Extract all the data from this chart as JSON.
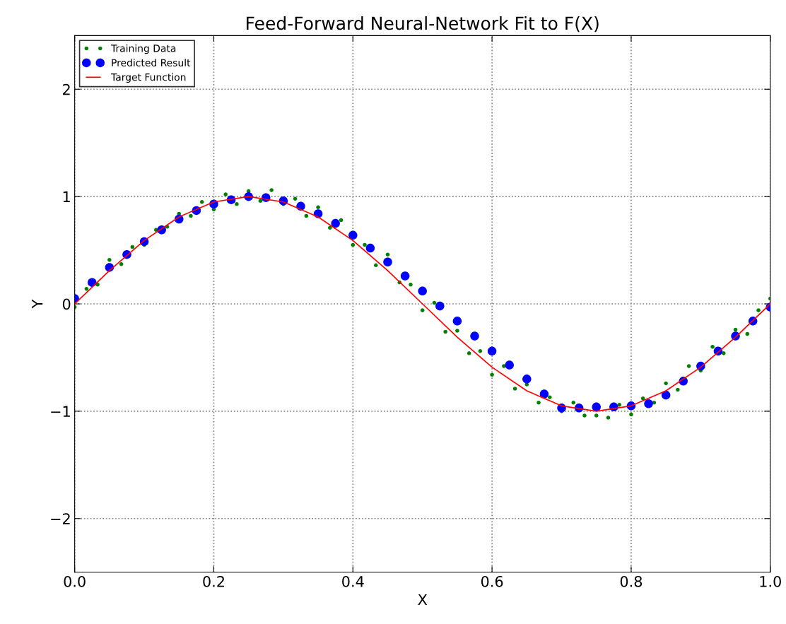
{
  "chart_data": {
    "type": "scatter",
    "title": "Feed-Forward Neural-Network Fit to F(X)",
    "xlabel": "X",
    "ylabel": "Y",
    "xlim": [
      0,
      1
    ],
    "xticks": [
      {
        "value": 0,
        "label": "0.0"
      },
      0.2,
      0.4,
      0.6,
      0.8,
      {
        "value": 1,
        "label": "1.0"
      }
    ],
    "ylim": [
      -2.5,
      2.5
    ],
    "yticks": [
      {
        "value": -2,
        "label": "−2"
      },
      {
        "value": -1,
        "label": "−1"
      },
      0,
      1,
      2
    ],
    "grid": true,
    "legend": "top left",
    "series": [
      {
        "name": "Training Data",
        "marker": "circle",
        "color": "#007f00",
        "x": [
          0,
          0.017,
          0.033,
          0.05,
          0.067,
          0.083,
          0.1,
          0.117,
          0.133,
          0.15,
          0.167,
          0.183,
          0.2,
          0.217,
          0.233,
          0.25,
          0.267,
          0.283,
          0.3,
          0.317,
          0.333,
          0.35,
          0.367,
          0.383,
          0.4,
          0.417,
          0.433,
          0.45,
          0.467,
          0.483,
          0.5,
          0.517,
          0.533,
          0.55,
          0.567,
          0.583,
          0.6,
          0.617,
          0.633,
          0.65,
          0.667,
          0.683,
          0.7,
          0.717,
          0.733,
          0.75,
          0.767,
          0.783,
          0.8,
          0.817,
          0.833,
          0.85,
          0.867,
          0.883,
          0.9,
          0.917,
          0.933,
          0.95,
          0.967,
          0.983,
          1.0
        ],
        "values": [
          -0.03,
          0.14,
          0.18,
          0.41,
          0.37,
          0.53,
          0.55,
          0.69,
          0.72,
          0.84,
          0.82,
          0.95,
          0.88,
          1.02,
          0.93,
          1.05,
          0.96,
          1.06,
          0.93,
          0.98,
          0.82,
          0.9,
          0.71,
          0.78,
          0.55,
          0.55,
          0.36,
          0.46,
          0.2,
          0.18,
          -0.06,
          0.01,
          -0.26,
          -0.25,
          -0.46,
          -0.44,
          -0.66,
          -0.58,
          -0.79,
          -0.75,
          -0.92,
          -0.87,
          -1.0,
          -0.92,
          -1.04,
          -1.04,
          -1.06,
          -0.94,
          -1.03,
          -0.88,
          -0.92,
          -0.74,
          -0.8,
          -0.58,
          -0.62,
          -0.4,
          -0.46,
          -0.24,
          -0.28,
          -0.06,
          0.05
        ]
      },
      {
        "name": "Predicted Result",
        "marker": "circle",
        "color": "#0000ff",
        "x": [
          0,
          0.025,
          0.05,
          0.075,
          0.1,
          0.125,
          0.15,
          0.175,
          0.2,
          0.225,
          0.25,
          0.275,
          0.3,
          0.325,
          0.35,
          0.375,
          0.4,
          0.425,
          0.45,
          0.475,
          0.5,
          0.525,
          0.55,
          0.575,
          0.6,
          0.625,
          0.65,
          0.675,
          0.7,
          0.725,
          0.75,
          0.775,
          0.8,
          0.825,
          0.85,
          0.875,
          0.9,
          0.925,
          0.95,
          0.975,
          1.0
        ],
        "values": [
          0.05,
          0.2,
          0.34,
          0.46,
          0.58,
          0.69,
          0.79,
          0.87,
          0.93,
          0.97,
          1.0,
          0.99,
          0.96,
          0.91,
          0.84,
          0.75,
          0.64,
          0.52,
          0.39,
          0.26,
          0.12,
          -0.02,
          -0.16,
          -0.3,
          -0.44,
          -0.57,
          -0.7,
          -0.84,
          -0.97,
          -0.97,
          -0.96,
          -0.96,
          -0.95,
          -0.93,
          -0.85,
          -0.72,
          -0.58,
          -0.44,
          -0.3,
          -0.16,
          -0.03
        ]
      },
      {
        "name": "Target Function",
        "type": "line",
        "marker": "none",
        "line_style": "solid",
        "color": "#ff0000",
        "x": [
          0,
          0.05,
          0.1,
          0.15,
          0.2,
          0.25,
          0.3,
          0.35,
          0.4,
          0.45,
          0.5,
          0.55,
          0.6,
          0.65,
          0.7,
          0.75,
          0.8,
          0.85,
          0.9,
          0.95,
          1.0
        ],
        "values": [
          0,
          0.31,
          0.59,
          0.81,
          0.95,
          1.0,
          0.95,
          0.81,
          0.59,
          0.31,
          0,
          -0.31,
          -0.59,
          -0.81,
          -0.95,
          -1.0,
          -0.95,
          -0.81,
          -0.59,
          -0.31,
          0
        ]
      }
    ]
  }
}
